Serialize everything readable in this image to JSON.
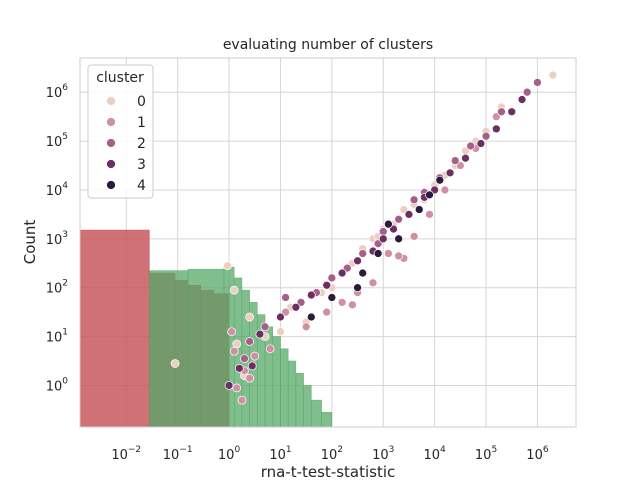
{
  "chart_data": {
    "type": "scatter",
    "title": "evaluating number of clusters",
    "xlabel": "rna-t-test-statistic",
    "ylabel": "Count",
    "xscale": "log",
    "yscale": "log",
    "xlim_log10": [
      -2.9,
      6.75
    ],
    "ylim_log10": [
      -0.85,
      6.7
    ],
    "grid": true,
    "x_ticks": [
      {
        "base": "10",
        "exp": "−2",
        "v": -2
      },
      {
        "base": "10",
        "exp": "−1",
        "v": -1
      },
      {
        "base": "10",
        "exp": "0",
        "v": 0
      },
      {
        "base": "10",
        "exp": "1",
        "v": 1
      },
      {
        "base": "10",
        "exp": "2",
        "v": 2
      },
      {
        "base": "10",
        "exp": "3",
        "v": 3
      },
      {
        "base": "10",
        "exp": "4",
        "v": 4
      },
      {
        "base": "10",
        "exp": "5",
        "v": 5
      },
      {
        "base": "10",
        "exp": "6",
        "v": 6
      }
    ],
    "y_ticks": [
      {
        "base": "10",
        "exp": "0",
        "v": 0
      },
      {
        "base": "10",
        "exp": "1",
        "v": 1
      },
      {
        "base": "10",
        "exp": "2",
        "v": 2
      },
      {
        "base": "10",
        "exp": "3",
        "v": 3
      },
      {
        "base": "10",
        "exp": "4",
        "v": 4
      },
      {
        "base": "10",
        "exp": "5",
        "v": 5
      },
      {
        "base": "10",
        "exp": "6",
        "v": 6
      }
    ],
    "legend": {
      "title": "cluster",
      "placement": "upper-left",
      "entries": [
        {
          "label": "0",
          "color": "#ebd0c2"
        },
        {
          "label": "1",
          "color": "#d08fa3"
        },
        {
          "label": "2",
          "color": "#a85e8a"
        },
        {
          "label": "3",
          "color": "#6b2f64"
        },
        {
          "label": "4",
          "color": "#2c1a3e"
        }
      ]
    },
    "histograms": [
      {
        "color": "#c44e52",
        "opacity": 0.8,
        "bins": [
          {
            "x0": -3.0,
            "x1": -1.55,
            "y": 3.18
          },
          {
            "x0": -1.55,
            "x1": -1.05,
            "y": 2.3
          },
          {
            "x0": -1.05,
            "x1": -0.8,
            "y": 2.15
          },
          {
            "x0": -0.8,
            "x1": -0.55,
            "y": 2.05
          },
          {
            "x0": -0.55,
            "x1": -0.3,
            "y": 1.95
          },
          {
            "x0": -0.3,
            "x1": 0.0,
            "y": 1.88
          }
        ]
      },
      {
        "color": "#55a868",
        "opacity": 0.75,
        "bins": [
          {
            "x0": -1.55,
            "x1": -0.8,
            "y": 2.35
          },
          {
            "x0": -0.8,
            "x1": -0.1,
            "y": 2.38
          },
          {
            "x0": -0.1,
            "x1": 0.1,
            "y": 2.42
          },
          {
            "x0": 0.1,
            "x1": 0.25,
            "y": 2.2
          },
          {
            "x0": 0.25,
            "x1": 0.4,
            "y": 1.95
          },
          {
            "x0": 0.4,
            "x1": 0.55,
            "y": 1.7
          },
          {
            "x0": 0.55,
            "x1": 0.7,
            "y": 1.45
          },
          {
            "x0": 0.7,
            "x1": 0.85,
            "y": 1.2
          },
          {
            "x0": 0.85,
            "x1": 1.0,
            "y": 1.0
          },
          {
            "x0": 1.0,
            "x1": 1.15,
            "y": 0.75
          },
          {
            "x0": 1.15,
            "x1": 1.3,
            "y": 0.5
          },
          {
            "x0": 1.3,
            "x1": 1.45,
            "y": 0.25
          },
          {
            "x0": 1.45,
            "x1": 1.6,
            "y": 0.0
          },
          {
            "x0": 1.6,
            "x1": 1.8,
            "y": -0.3
          },
          {
            "x0": 1.8,
            "x1": 2.0,
            "y": -0.55
          }
        ]
      }
    ],
    "series": [
      {
        "name": "0",
        "color": "#ebd0c2",
        "points": [
          [
            -0.03,
            2.45
          ],
          [
            0.1,
            1.95
          ],
          [
            0.4,
            1.4
          ],
          [
            0.7,
            1.0
          ],
          [
            1.0,
            1.1
          ],
          [
            1.2,
            1.6
          ],
          [
            1.5,
            1.3
          ],
          [
            1.8,
            1.9
          ],
          [
            2.0,
            2.0
          ],
          [
            2.2,
            2.3
          ],
          [
            2.4,
            2.5
          ],
          [
            2.6,
            2.8
          ],
          [
            2.8,
            3.0
          ],
          [
            3.0,
            3.2
          ],
          [
            3.2,
            3.3
          ],
          [
            3.4,
            3.6
          ],
          [
            3.6,
            3.7
          ],
          [
            3.8,
            3.8
          ],
          [
            4.0,
            4.1
          ],
          [
            4.2,
            4.3
          ],
          [
            4.4,
            4.5
          ],
          [
            4.6,
            4.8
          ],
          [
            4.8,
            5.0
          ],
          [
            5.0,
            5.2
          ],
          [
            5.3,
            5.7
          ],
          [
            6.3,
            6.35
          ],
          [
            -1.05,
            0.45
          ],
          [
            0.15,
            0.85
          ],
          [
            0.3,
            0.2
          ],
          [
            2.9,
            3.05
          ]
        ]
      },
      {
        "name": "1",
        "color": "#d08fa3",
        "points": [
          [
            0.1,
            0.7
          ],
          [
            0.3,
            0.3
          ],
          [
            0.5,
            0.6
          ],
          [
            0.25,
            -0.3
          ],
          [
            0.05,
            1.1
          ],
          [
            0.8,
            0.75
          ],
          [
            1.1,
            1.5
          ],
          [
            1.5,
            1.2
          ],
          [
            1.9,
            1.5
          ],
          [
            2.2,
            1.7
          ],
          [
            2.5,
            1.9
          ],
          [
            2.8,
            2.1
          ],
          [
            3.1,
            2.7
          ],
          [
            3.4,
            2.6
          ],
          [
            3.6,
            3.05
          ],
          [
            3.9,
            3.5
          ],
          [
            4.2,
            4.0
          ],
          [
            4.5,
            4.5
          ],
          [
            4.8,
            4.85
          ],
          [
            5.2,
            5.5
          ],
          [
            2.4,
            1.65
          ],
          [
            3.3,
            2.65
          ],
          [
            0.15,
            -0.05
          ],
          [
            0.4,
            0.15
          ]
        ]
      },
      {
        "name": "2",
        "color": "#a85e8a",
        "points": [
          [
            0.4,
            0.9
          ],
          [
            0.7,
            1.2
          ],
          [
            1.1,
            1.8
          ],
          [
            1.4,
            1.7
          ],
          [
            1.7,
            1.9
          ],
          [
            2.0,
            2.2
          ],
          [
            2.3,
            2.4
          ],
          [
            2.6,
            2.7
          ],
          [
            2.9,
            2.9
          ],
          [
            3.1,
            3.3
          ],
          [
            3.3,
            3.4
          ],
          [
            3.6,
            3.8
          ],
          [
            3.8,
            3.95
          ],
          [
            4.1,
            4.25
          ],
          [
            4.4,
            4.6
          ],
          [
            4.7,
            4.9
          ],
          [
            5.0,
            5.1
          ],
          [
            5.3,
            5.6
          ],
          [
            5.8,
            6.0
          ],
          [
            6.0,
            6.2
          ],
          [
            3.0,
            3.15
          ],
          [
            0.3,
            0.55
          ]
        ]
      },
      {
        "name": "3",
        "color": "#6b2f64",
        "points": [
          [
            0.6,
            1.05
          ],
          [
            1.0,
            1.4
          ],
          [
            1.3,
            1.6
          ],
          [
            1.6,
            1.85
          ],
          [
            1.9,
            2.05
          ],
          [
            2.2,
            2.3
          ],
          [
            2.5,
            2.55
          ],
          [
            2.8,
            2.75
          ],
          [
            3.0,
            3.0
          ],
          [
            3.2,
            3.2
          ],
          [
            3.5,
            3.5
          ],
          [
            3.8,
            3.85
          ],
          [
            4.0,
            4.0
          ],
          [
            4.3,
            4.35
          ],
          [
            4.6,
            4.65
          ],
          [
            4.9,
            4.95
          ],
          [
            5.2,
            5.25
          ],
          [
            5.5,
            5.6
          ],
          [
            5.7,
            5.85
          ],
          [
            0.0,
            0.0
          ],
          [
            0.2,
            0.35
          ],
          [
            0.45,
            0.4
          ]
        ]
      },
      {
        "name": "4",
        "color": "#2c1a3e",
        "points": [
          [
            1.6,
            1.4
          ],
          [
            2.0,
            1.8
          ],
          [
            2.5,
            2.0
          ],
          [
            2.9,
            2.7
          ],
          [
            3.3,
            3.0
          ],
          [
            3.7,
            3.6
          ],
          [
            3.9,
            3.9
          ],
          [
            4.1,
            4.2
          ],
          [
            2.6,
            2.3
          ],
          [
            3.1,
            3.3
          ]
        ]
      }
    ]
  }
}
